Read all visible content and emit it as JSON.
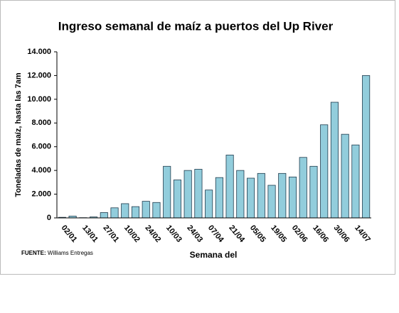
{
  "chart_data": {
    "type": "bar",
    "title": "Ingreso semanal de maíz a puertos del Up River",
    "y_label": "Toneladas de maíz, hasta las 7am",
    "x_label": "Semana del",
    "source_label": "FUENTE:",
    "source": "Williams Entregas",
    "categories": [
      null,
      "02/01",
      null,
      "13/01",
      null,
      "27/01",
      null,
      "10/02",
      null,
      "24/02",
      null,
      "10/03",
      null,
      "24/03",
      null,
      "07/04",
      null,
      "21/04",
      null,
      "05/05",
      null,
      "19/05",
      null,
      "02/06",
      null,
      "16/06",
      null,
      "30/06",
      null,
      "14/07"
    ],
    "values": [
      50,
      150,
      20,
      80,
      450,
      850,
      1200,
      950,
      1400,
      1300,
      4350,
      3200,
      4000,
      4100,
      2350,
      3400,
      5300,
      4000,
      3350,
      3750,
      2750,
      3750,
      3450,
      5100,
      4350,
      7850,
      9750,
      7050,
      6150,
      12000
    ],
    "color": "#92cddc",
    "ylim": [
      0,
      14000
    ],
    "yticks": [
      0,
      {
        "value": 2000,
        "label": "2.000"
      },
      {
        "value": 4000,
        "label": "4.000"
      },
      {
        "value": 6000,
        "label": "6.000"
      },
      {
        "value": 8000,
        "label": "8.000"
      },
      {
        "value": 10000,
        "label": "10.000"
      },
      {
        "value": 12000,
        "label": "12.000"
      },
      {
        "value": 14000,
        "label": "14.000"
      }
    ],
    "grid": false
  }
}
